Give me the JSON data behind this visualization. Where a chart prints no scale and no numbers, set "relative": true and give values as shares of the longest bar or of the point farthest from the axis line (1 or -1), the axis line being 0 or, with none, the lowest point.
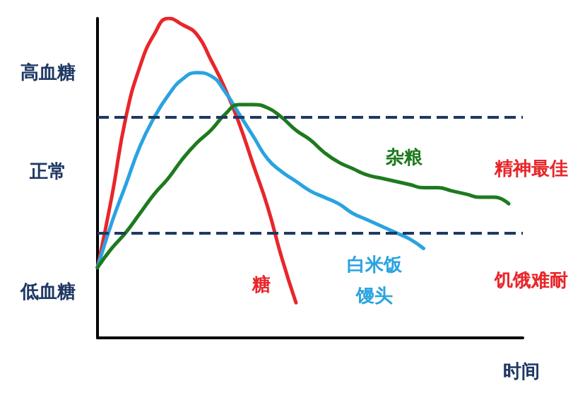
{
  "chart_data": {
    "type": "line",
    "relative": true,
    "xlabel": "时间",
    "categories": [
      null,
      null,
      null,
      null,
      null,
      null,
      null,
      null,
      null,
      null,
      null,
      null,
      null,
      null,
      null,
      null,
      null,
      null,
      null,
      null,
      null,
      null,
      null,
      null,
      null,
      null,
      null,
      null,
      null,
      null,
      null
    ],
    "series": [
      {
        "name": "糖",
        "color": "#e8262a",
        "values": [
          0.22,
          0.44,
          0.69,
          0.85,
          0.95,
          1,
          0.98,
          0.95,
          0.87,
          0.78,
          0.67,
          0.54,
          0.41,
          0.25,
          0.11,
          null,
          null,
          null,
          null,
          null,
          null,
          null,
          null,
          null,
          null,
          null,
          null,
          null,
          null,
          null,
          null
        ]
      },
      {
        "name": "白米饭馒头",
        "color": "#2aa3e0",
        "values": [
          0.22,
          0.36,
          0.48,
          0.6,
          0.69,
          0.76,
          0.81,
          0.83,
          0.82,
          0.77,
          0.7,
          0.63,
          0.56,
          0.52,
          0.49,
          0.46,
          0.44,
          0.42,
          0.39,
          0.37,
          0.35,
          0.33,
          0.31,
          0.28,
          null,
          null,
          null,
          null,
          null,
          null,
          null
        ]
      },
      {
        "name": "杂粮",
        "color": "#1e7a1e",
        "values": [
          0.22,
          0.28,
          0.33,
          0.39,
          0.45,
          0.5,
          0.56,
          0.61,
          0.65,
          0.7,
          0.73,
          0.73,
          0.72,
          0.69,
          0.65,
          0.62,
          0.58,
          0.55,
          0.53,
          0.51,
          0.5,
          0.49,
          0.48,
          0.47,
          0.47,
          0.46,
          0.45,
          0.44,
          0.44,
          0.42,
          null
        ]
      }
    ],
    "ref_lines": [
      {
        "axis": "y",
        "value": 0.69,
        "color": "#1f3864",
        "line_style": "dashed"
      },
      {
        "axis": "y",
        "value": 0.33,
        "color": "#1f3864",
        "line_style": "dashed"
      }
    ],
    "annotations": [
      "高血糖",
      "正常",
      "低血糖",
      "精神最佳",
      "饥饿难耐"
    ],
    "grid": false,
    "legend": false,
    "marker": "none",
    "line_style": "solid"
  }
}
